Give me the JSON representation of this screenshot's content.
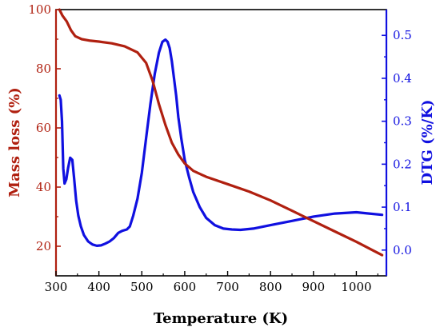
{
  "chart_data": {
    "type": "line",
    "xlabel": "Temperature (K)",
    "ylabel_left": "Mass loss (%)",
    "ylabel_right": "DTG (%/K)",
    "xlim": [
      300,
      1070
    ],
    "ylim_left": [
      10,
      100
    ],
    "ylim_right": [
      -0.06,
      0.56
    ],
    "x_ticks": [
      300,
      400,
      500,
      600,
      700,
      800,
      900,
      1000
    ],
    "y_left_ticks": [
      20,
      40,
      60,
      80,
      100
    ],
    "y_right_ticks": [
      0.0,
      0.1,
      0.2,
      0.3,
      0.4,
      0.5
    ],
    "y_right_tick_labels": [
      "0.0",
      "0.1",
      "0.2",
      "0.3",
      "0.4",
      "0.5"
    ],
    "colors": {
      "mass": "#b02010",
      "dtg": "#1010e0",
      "left_axis": "#b02010",
      "right_axis": "#1010e0",
      "frame": "#000000"
    },
    "series": [
      {
        "axis": "left",
        "x": [
          308,
          315,
          325,
          335,
          345,
          360,
          380,
          400,
          430,
          460,
          490,
          510,
          525,
          540,
          555,
          570,
          585,
          600,
          620,
          650,
          700,
          750,
          800,
          850,
          900,
          950,
          1000,
          1040,
          1060
        ],
        "values": [
          100,
          98,
          96,
          93,
          91,
          90,
          89.5,
          89.2,
          88.6,
          87.6,
          85.5,
          82,
          76,
          68,
          61,
          55,
          51,
          48,
          45.5,
          43.5,
          41,
          38.5,
          35.5,
          32,
          28.5,
          25,
          21.5,
          18.5,
          17
        ]
      },
      {
        "axis": "right",
        "x": [
          308,
          311,
          314,
          317,
          320,
          324,
          328,
          333,
          338,
          342,
          347,
          352,
          358,
          365,
          375,
          385,
          395,
          405,
          415,
          425,
          435,
          445,
          455,
          465,
          472,
          480,
          490,
          500,
          510,
          520,
          530,
          540,
          548,
          555,
          560,
          565,
          570,
          575,
          580,
          585,
          592,
          600,
          610,
          620,
          635,
          650,
          670,
          690,
          710,
          730,
          760,
          800,
          850,
          900,
          950,
          1000,
          1030,
          1060
        ],
        "values": [
          0.36,
          0.35,
          0.3,
          0.19,
          0.155,
          0.165,
          0.19,
          0.215,
          0.21,
          0.17,
          0.115,
          0.08,
          0.055,
          0.035,
          0.02,
          0.013,
          0.01,
          0.011,
          0.015,
          0.02,
          0.028,
          0.04,
          0.045,
          0.048,
          0.055,
          0.08,
          0.12,
          0.18,
          0.26,
          0.34,
          0.41,
          0.46,
          0.485,
          0.49,
          0.485,
          0.47,
          0.44,
          0.4,
          0.36,
          0.31,
          0.26,
          0.21,
          0.17,
          0.135,
          0.1,
          0.075,
          0.058,
          0.05,
          0.048,
          0.047,
          0.05,
          0.058,
          0.068,
          0.078,
          0.085,
          0.088,
          0.085,
          0.082
        ]
      }
    ]
  }
}
